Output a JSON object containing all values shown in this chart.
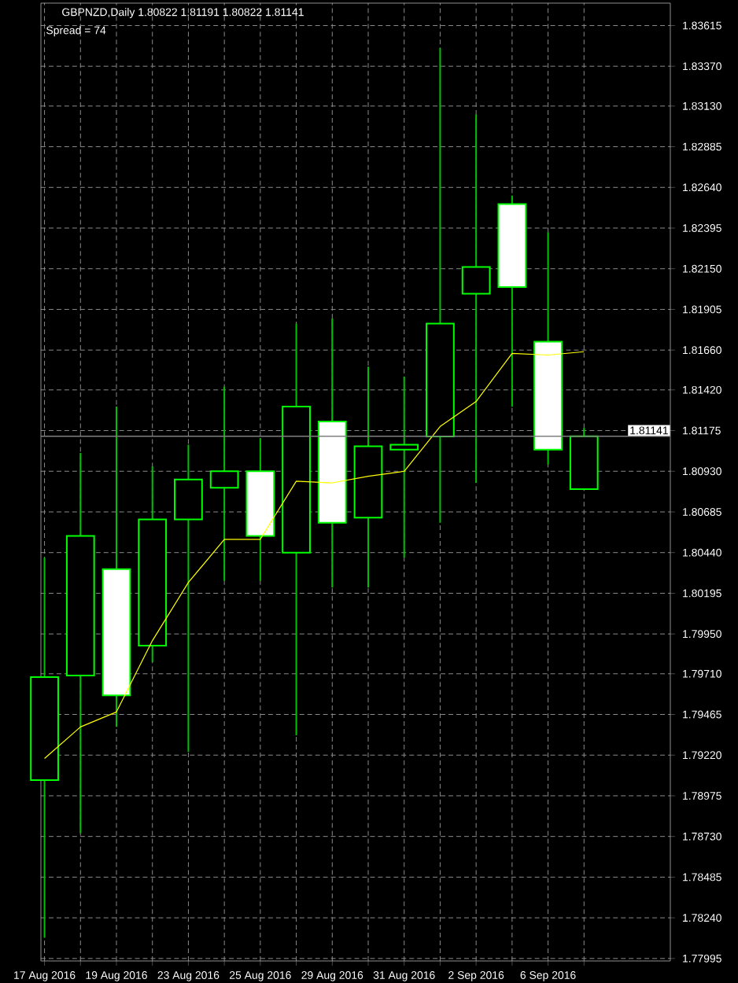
{
  "chart_data": {
    "type": "candlestick",
    "title": "GBPNZD,Daily  1.80822 1.81191 1.80822 1.81141",
    "subtitle": "Spread = 74",
    "categories": [
      "17 Aug 2016",
      null,
      "19 Aug 2016",
      null,
      "23 Aug 2016",
      null,
      "25 Aug 2016",
      null,
      "29 Aug 2016",
      null,
      "31 Aug 2016",
      null,
      "2 Sep 2016",
      null,
      "6 Sep 2016",
      null
    ],
    "series": [
      {
        "type": "candlestick",
        "color": "#00ff00",
        "ohlc": [
          [
            1.7907,
            1.8041,
            1.7812,
            1.7969
          ],
          [
            1.797,
            1.8104,
            1.7875,
            1.8054
          ],
          [
            1.8034,
            1.8132,
            1.7939,
            1.7958
          ],
          [
            1.7988,
            1.8096,
            1.7978,
            1.8064
          ],
          [
            1.8064,
            1.8109,
            1.7924,
            1.8088
          ],
          [
            1.8083,
            1.8144,
            1.8027,
            1.8093
          ],
          [
            1.8093,
            1.8113,
            1.8027,
            1.8054
          ],
          [
            1.8044,
            1.8182,
            1.7934,
            1.8132
          ],
          [
            1.8123,
            1.8185,
            1.8023,
            1.8062
          ],
          [
            1.8065,
            1.8156,
            1.8023,
            1.8108
          ],
          [
            1.8106,
            1.815,
            1.8041,
            1.8109
          ],
          [
            1.8114,
            1.8348,
            1.8062,
            1.8182
          ],
          [
            1.82,
            1.8308,
            1.8086,
            1.8216
          ],
          [
            1.8254,
            1.8259,
            1.8132,
            1.8204
          ],
          [
            1.8171,
            1.8237,
            1.8097,
            1.8106
          ],
          [
            1.80822,
            1.81191,
            1.80822,
            1.81141
          ]
        ]
      },
      {
        "type": "line",
        "color": "#ffff00",
        "values": [
          1.792,
          1.7939,
          1.7948,
          1.7991,
          1.8026,
          1.8052,
          1.8052,
          1.8087,
          1.8086,
          1.809,
          1.8093,
          1.812,
          1.8135,
          1.8164,
          1.8163,
          1.8165
        ]
      }
    ],
    "ylim": [
      1.7798,
      1.8375
    ],
    "yticks": [
      1.77995,
      {
        "value": 1.7824,
        "label": "1.78240"
      },
      1.78485,
      {
        "value": 1.7873,
        "label": "1.78730"
      },
      1.78975,
      {
        "value": 1.7922,
        "label": "1.79220"
      },
      1.79465,
      {
        "value": 1.7971,
        "label": "1.79710"
      },
      {
        "value": 1.7995,
        "label": "1.79950"
      },
      1.80195,
      {
        "value": 1.8044,
        "label": "1.80440"
      },
      1.80685,
      {
        "value": 1.8093,
        "label": "1.80930"
      },
      1.81175,
      {
        "value": 1.8142,
        "label": "1.81420"
      },
      {
        "value": 1.8166,
        "label": "1.81660"
      },
      1.81905,
      {
        "value": 1.8215,
        "label": "1.82150"
      },
      1.82395,
      {
        "value": 1.8264,
        "label": "1.82640"
      },
      1.82885,
      {
        "value": 1.8313,
        "label": "1.83130"
      },
      {
        "value": 1.8337,
        "label": "1.83370"
      },
      1.83615
    ],
    "ref_lines": [
      {
        "axis": "y",
        "value": 1.81141,
        "label": "1.81141",
        "color": "#808080"
      }
    ],
    "grid": true
  }
}
